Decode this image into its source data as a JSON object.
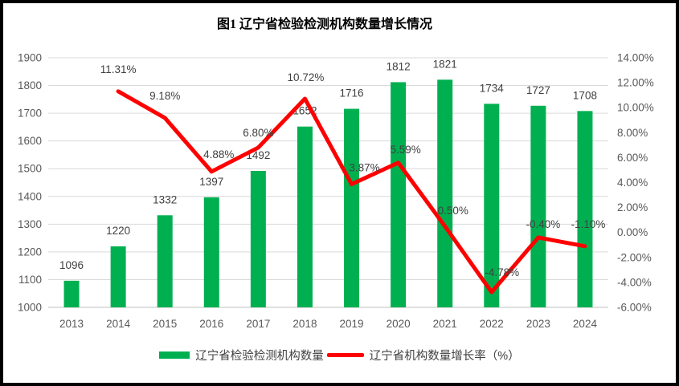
{
  "figure": {
    "title": "图1 辽宁省检验检测机构数量增长情况"
  },
  "legend": [
    {
      "label": "辽宁省检验检测机构数量",
      "marker": "bar",
      "color": "#00B050"
    },
    {
      "label": "辽宁省机构数量增长率（%）",
      "marker": "line",
      "color": "#FF0000"
    }
  ],
  "chart_data": {
    "type": "combo-bar-line",
    "title": "图1 辽宁省检验检测机构数量增长情况",
    "categories": [
      "2013",
      "2014",
      "2015",
      "2016",
      "2017",
      "2018",
      "2019",
      "2020",
      "2021",
      "2022",
      "2023",
      "2024"
    ],
    "series": [
      {
        "name": "辽宁省检验检测机构数量",
        "chart_type": "bar",
        "axis": "left",
        "color": "#00B050",
        "values": [
          1096,
          1220,
          1332,
          1397,
          1492,
          1652,
          1716,
          1812,
          1821,
          1734,
          1727,
          1708
        ],
        "labels": [
          "1096",
          "1220",
          "1332",
          "1397",
          "1492",
          "1652",
          "1716",
          "1812",
          "1821",
          "1734",
          "1727",
          "1708"
        ]
      },
      {
        "name": "辽宁省机构数量增长率（%）",
        "chart_type": "line",
        "axis": "right",
        "color": "#FF0000",
        "values": [
          null,
          11.31,
          9.18,
          4.88,
          6.8,
          10.72,
          3.87,
          5.59,
          0.5,
          -4.78,
          -0.4,
          -1.1
        ],
        "labels": [
          null,
          "11.31%",
          "9.18%",
          "4.88%",
          "6.80%",
          "10.72%",
          "3.87%",
          "5.59%",
          "0.50%",
          "-4.78%",
          "-0.40%",
          "-1.10%"
        ]
      }
    ],
    "left_axis": {
      "min": 1000,
      "max": 1900,
      "step": 100,
      "tick_labels": [
        "1900",
        "1800",
        "1700",
        "1600",
        "1500",
        "1400",
        "1300",
        "1200",
        "1100",
        "1000"
      ]
    },
    "right_axis": {
      "min": -6,
      "max": 14,
      "step": 2,
      "tick_labels": [
        "14.00%",
        "12.00%",
        "10.00%",
        "8.00%",
        "6.00%",
        "4.00%",
        "2.00%",
        "0.00%",
        "-2.00%",
        "-4.00%",
        "-6.00%"
      ]
    },
    "grid": true,
    "legend_position": "bottom",
    "colors": {
      "gridline": "#D9D9D9",
      "axis_line": "#BFBFBF",
      "tick_text": "#595959",
      "data_label_text": "#404040"
    }
  }
}
